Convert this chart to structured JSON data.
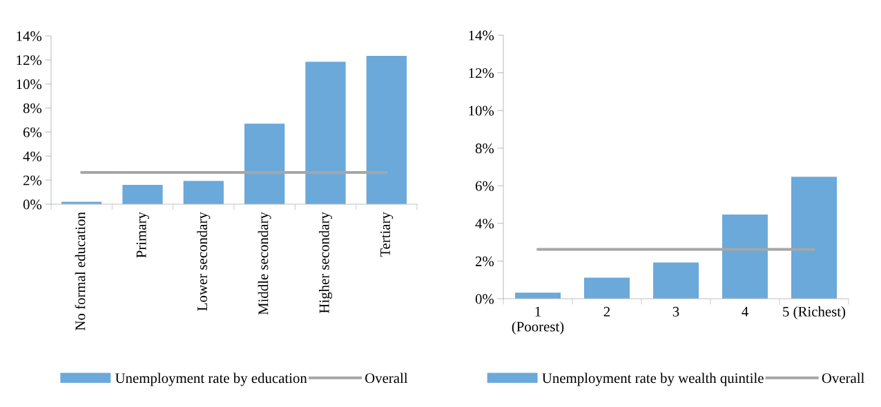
{
  "chart_data": [
    {
      "type": "bar",
      "categories": [
        "No formal education",
        "Primary",
        "Lower secondary",
        "Middle secondary",
        "Higher secondary",
        "Tertiary"
      ],
      "series": [
        {
          "name": "Unemployment rate by education",
          "color": "#6aa9da",
          "values": [
            0.2,
            1.6,
            1.94,
            6.7,
            11.85,
            12.34
          ]
        },
        {
          "name": "Overall",
          "type": "line",
          "color": "#a6a6a6",
          "values": [
            2.64,
            2.64,
            2.64,
            2.64,
            2.64,
            2.64
          ]
        }
      ],
      "ylim": [
        0,
        14
      ],
      "yticks": [
        {
          "value": 0,
          "label": "0%"
        },
        {
          "value": 2,
          "label": "2%"
        },
        {
          "value": 4,
          "label": "4%"
        },
        {
          "value": 6,
          "label": "6%"
        },
        {
          "value": 8,
          "label": "8%"
        },
        {
          "value": 10,
          "label": "10%"
        },
        {
          "value": 12,
          "label": "12%"
        },
        {
          "value": 14,
          "label": "14%"
        }
      ],
      "grid": false,
      "legend": "bottom",
      "marker": "none"
    },
    {
      "type": "bar",
      "categories": [
        "1\n(Poorest)",
        "2",
        "3",
        "4",
        "5 (Richest)"
      ],
      "series": [
        {
          "name": "Unemployment rate by wealth quintile",
          "color": "#6aa9da",
          "values": [
            0.32,
            1.12,
            1.92,
            4.47,
            6.48
          ]
        },
        {
          "name": "Overall",
          "type": "line",
          "color": "#a6a6a6",
          "values": [
            2.62,
            2.62,
            2.62,
            2.62,
            2.62
          ]
        }
      ],
      "ylim": [
        0,
        14
      ],
      "yticks": [
        {
          "value": 0,
          "label": "0%"
        },
        {
          "value": 2,
          "label": "2%"
        },
        {
          "value": 4,
          "label": "4%"
        },
        {
          "value": 6,
          "label": "6%"
        },
        {
          "value": 8,
          "label": "8%"
        },
        {
          "value": 10,
          "label": "10%"
        },
        {
          "value": 12,
          "label": "12%"
        },
        {
          "value": 14,
          "label": "14%"
        }
      ],
      "grid": false,
      "legend": "bottom",
      "marker": "none"
    }
  ]
}
